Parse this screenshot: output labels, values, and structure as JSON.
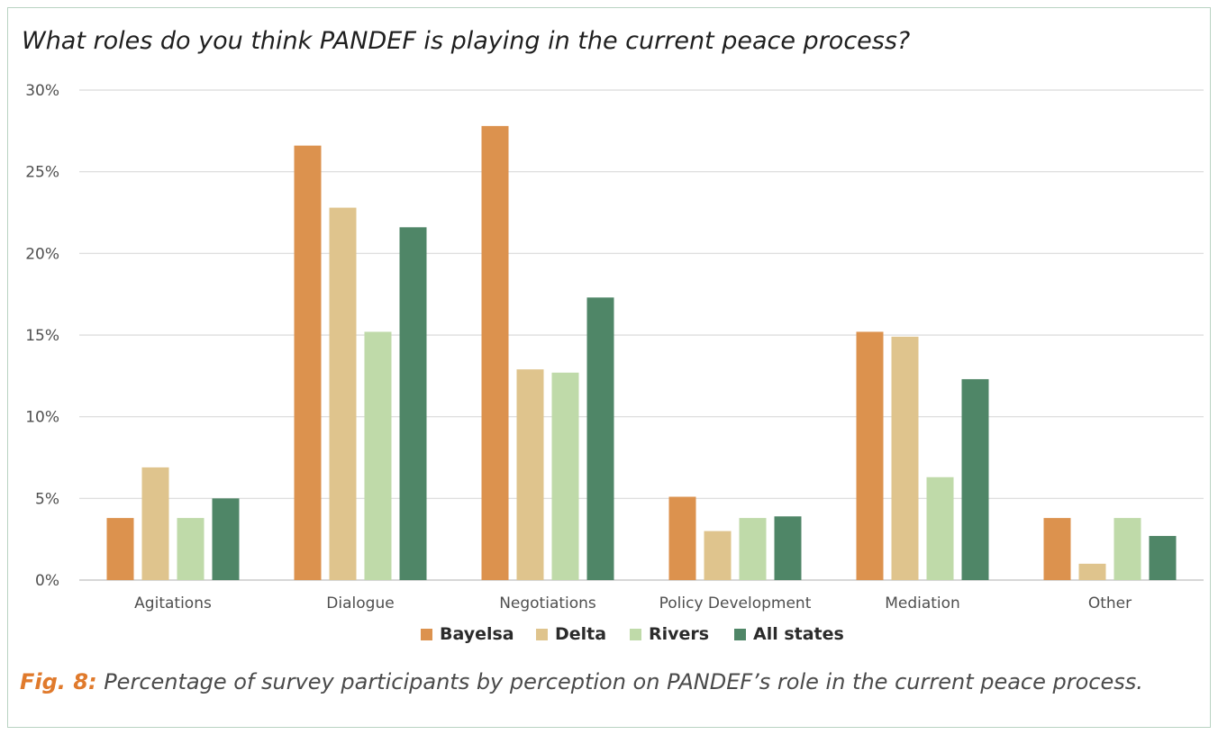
{
  "title": "What roles do you think PANDEF is playing in the current peace process?",
  "caption": {
    "figure_label": "Fig. 8:",
    "text": " Percentage of survey participants by perception on PANDEF’s role in the current peace process."
  },
  "colors": {
    "grid": "#d9d9d9",
    "axis": "#bfbfbf",
    "accent": "#e07a2c"
  },
  "chart_data": {
    "type": "bar",
    "categories": [
      "Agitations",
      "Dialogue",
      "Negotiations",
      "Policy Development",
      "Mediation",
      "Other"
    ],
    "series": [
      {
        "name": "Bayelsa",
        "color": "#dc924e",
        "values": [
          3.8,
          26.6,
          27.8,
          5.1,
          15.2,
          3.8
        ]
      },
      {
        "name": "Delta",
        "color": "#dfc48d",
        "values": [
          6.9,
          22.8,
          12.9,
          3.0,
          14.9,
          1.0
        ]
      },
      {
        "name": "Rivers",
        "color": "#bfdaa9",
        "values": [
          3.8,
          15.2,
          12.7,
          3.8,
          6.3,
          3.8
        ]
      },
      {
        "name": "All states",
        "color": "#4f8667",
        "values": [
          5.0,
          21.6,
          17.3,
          3.9,
          12.3,
          2.7
        ]
      }
    ],
    "ylim": [
      0,
      30
    ],
    "yticks": [
      0,
      5,
      10,
      15,
      20,
      25,
      30
    ],
    "ytick_labels": [
      "0%",
      "5%",
      "10%",
      "15%",
      "20%",
      "25%",
      "30%"
    ],
    "grid": true,
    "legend_position": "bottom"
  }
}
